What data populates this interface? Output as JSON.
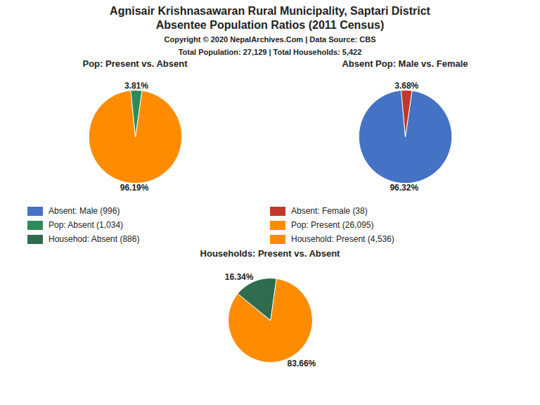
{
  "title": "Agnisair Krishnasawaran Rural Municipality, Saptari District",
  "subtitle": "Absentee Population Ratios (2011 Census)",
  "annotations": [
    "Copyright © 2020 NepalArchives.Com | Data Source: CBS",
    "Total Population: 27,129 | Total Households: 5,422"
  ],
  "legend_items": [
    {
      "name": "Absent: Male (996)",
      "color": "#4472C4"
    },
    {
      "name": "Absent: Female (38)",
      "color": "#C0392B"
    },
    {
      "name": "Pop: Absent (1,034)",
      "color": "#2E8B57"
    },
    {
      "name": "Pop: Present (26,095)",
      "color": "#FF8C00"
    },
    {
      "name": "Househod: Absent (886)",
      "color": "#2E6B4F"
    },
    {
      "name": "Household: Present (4,536)",
      "color": "#FF8C00"
    }
  ],
  "chart_data": [
    {
      "type": "pie",
      "title": "Pop: Present vs. Absent",
      "values": [
        96.19,
        3.81
      ],
      "value_labels": [
        "96.19%",
        "3.81%"
      ],
      "colors": [
        "#FF8C00",
        "#2E8B57"
      ],
      "data_labels": true
    },
    {
      "type": "pie",
      "title": "Absent Pop: Male vs. Female",
      "values": [
        96.32,
        3.68
      ],
      "value_labels": [
        "96.32%",
        "3.68%"
      ],
      "colors": [
        "#4472C4",
        "#C0392B"
      ],
      "data_labels": true
    },
    {
      "type": "pie",
      "title": "Households: Present vs. Absent",
      "values": [
        83.66,
        16.34
      ],
      "value_labels": [
        "83.66%",
        "16.34%"
      ],
      "colors": [
        "#FF8C00",
        "#2E6B4F"
      ],
      "data_labels": true
    }
  ]
}
